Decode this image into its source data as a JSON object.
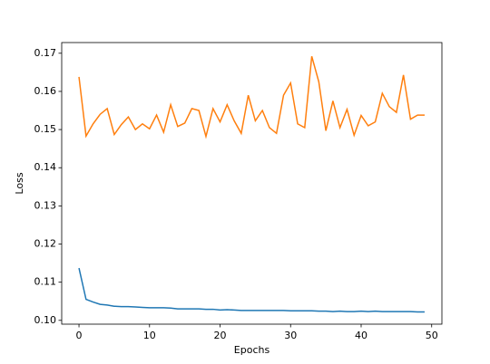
{
  "chart_data": {
    "type": "line",
    "x": [
      0,
      1,
      2,
      3,
      4,
      5,
      6,
      7,
      8,
      9,
      10,
      11,
      12,
      13,
      14,
      15,
      16,
      17,
      18,
      19,
      20,
      21,
      22,
      23,
      24,
      25,
      26,
      27,
      28,
      29,
      30,
      31,
      32,
      33,
      34,
      35,
      36,
      37,
      38,
      39,
      40,
      41,
      42,
      43,
      44,
      45,
      46,
      47,
      48,
      49
    ],
    "series": [
      {
        "color": "#1f77b4",
        "values": [
          0.1137,
          0.1055,
          0.1048,
          0.1042,
          0.104,
          0.1037,
          0.1036,
          0.1036,
          0.1035,
          0.1034,
          0.1033,
          0.1033,
          0.1033,
          0.1032,
          0.103,
          0.103,
          0.103,
          0.103,
          0.1029,
          0.1029,
          0.1027,
          0.1028,
          0.1027,
          0.1026,
          0.1026,
          0.1026,
          0.1026,
          0.1026,
          0.1026,
          0.1026,
          0.1025,
          0.1025,
          0.1025,
          0.1025,
          0.1024,
          0.1024,
          0.1023,
          0.1024,
          0.1023,
          0.1023,
          0.1024,
          0.1023,
          0.1024,
          0.1023,
          0.1023,
          0.1023,
          0.1023,
          0.1023,
          0.1022,
          0.1022
        ]
      },
      {
        "color": "#ff7f0e",
        "values": [
          0.1638,
          0.1483,
          0.1515,
          0.154,
          0.1555,
          0.1487,
          0.1513,
          0.1533,
          0.15,
          0.1515,
          0.1502,
          0.1538,
          0.1493,
          0.1565,
          0.1508,
          0.1517,
          0.1555,
          0.155,
          0.1482,
          0.1555,
          0.152,
          0.1565,
          0.1523,
          0.149,
          0.159,
          0.1523,
          0.155,
          0.1505,
          0.149,
          0.159,
          0.1622,
          0.1515,
          0.1505,
          0.1692,
          0.1625,
          0.1497,
          0.1575,
          0.1505,
          0.1553,
          0.1485,
          0.1537,
          0.151,
          0.152,
          0.1595,
          0.156,
          0.1545,
          0.1643,
          0.1527,
          0.1538,
          0.1538
        ]
      }
    ],
    "xlabel": "Epochs",
    "ylabel": "Loss",
    "xlim": [
      -2.45,
      51.45
    ],
    "xticks": [
      0,
      10,
      20,
      30,
      40,
      50
    ],
    "ylim": [
      0.099,
      0.1728
    ],
    "yticks": [
      {
        "value": 0.1,
        "label": "0.10"
      },
      0.11,
      0.12,
      0.13,
      0.14,
      0.15,
      0.16,
      0.17
    ]
  }
}
